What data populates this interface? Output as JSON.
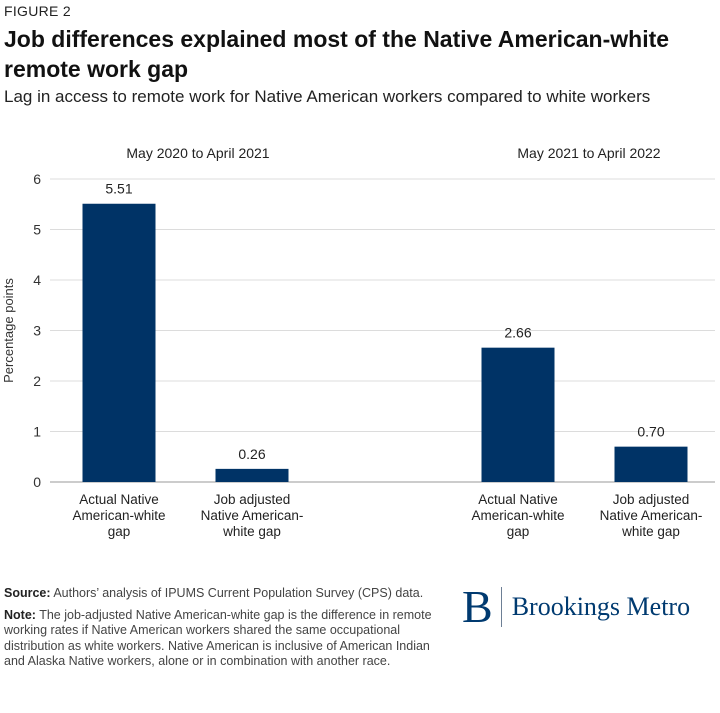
{
  "figure_label": "FIGURE 2",
  "chart_data": {
    "type": "bar",
    "title": "Job differences explained most of the Native American-white remote work gap",
    "subtitle": "Lag in access to remote work for Native American workers compared to white workers",
    "ylabel": "Percentage points",
    "ylim": [
      0,
      6
    ],
    "yticks": [
      "0",
      "1",
      "2",
      "3",
      "4",
      "5",
      "6"
    ],
    "grid": true,
    "bar_color": "#003366",
    "groups": [
      {
        "label": "May 2020 to April 2021",
        "bars": [
          {
            "category": [
              "Actual Native",
              "American-white",
              "gap"
            ],
            "value": 5.51,
            "value_label": "5.51"
          },
          {
            "category": [
              "Job adjusted",
              "Native American-",
              "white gap"
            ],
            "value": 0.26,
            "value_label": "0.26"
          }
        ]
      },
      {
        "label": "May 2021 to April 2022",
        "bars": [
          {
            "category": [
              "Actual Native",
              "American-white",
              "gap"
            ],
            "value": 2.66,
            "value_label": "2.66"
          },
          {
            "category": [
              "Job adjusted",
              "Native American-",
              "white gap"
            ],
            "value": 0.7,
            "value_label": "0.70"
          }
        ]
      }
    ]
  },
  "notes": {
    "source_label": "Source:",
    "source_text": " Authors’ analysis of IPUMS Current Population Survey (CPS) data.",
    "note_label": "Note:",
    "note_text": " The job-adjusted Native American-white gap is the difference in remote working rates if Native American workers shared the same occupational distribution as white workers. Native American is inclusive of American Indian and Alaska Native workers, alone or in combination with another race."
  },
  "logo": {
    "mark": "B",
    "text": "Brookings Metro",
    "color": "#003a70"
  }
}
